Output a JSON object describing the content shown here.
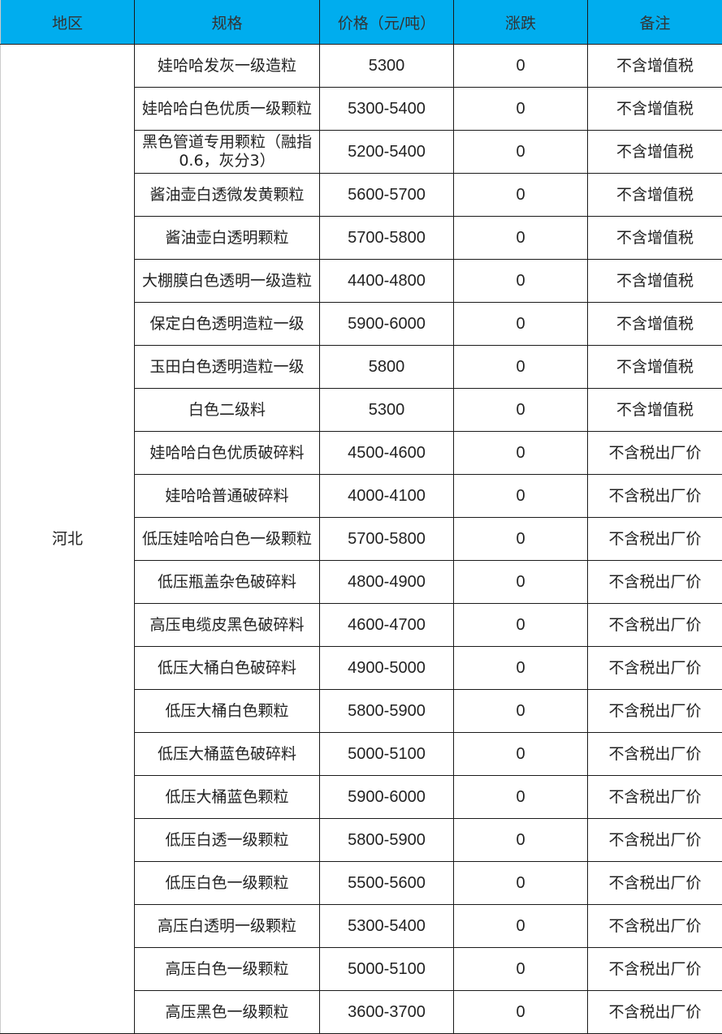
{
  "header": [
    "地区",
    "规格",
    "价格（元/吨）",
    "涨跌",
    "备注"
  ],
  "region": "河北",
  "rows": [
    {
      "spec": "娃哈哈发灰一级造粒",
      "price": "5300",
      "change": "0",
      "note": "不含增值税"
    },
    {
      "spec": "娃哈哈白色优质一级颗粒",
      "price": "5300-5400",
      "change": "0",
      "note": "不含增值税"
    },
    {
      "spec": "黑色管道专用颗粒（融指0.6，灰分3）",
      "price": "5200-5400",
      "change": "0",
      "note": "不含增值税"
    },
    {
      "spec": "酱油壶白透微发黄颗粒",
      "price": "5600-5700",
      "change": "0",
      "note": "不含增值税"
    },
    {
      "spec": "酱油壶白透明颗粒",
      "price": "5700-5800",
      "change": "0",
      "note": "不含增值税"
    },
    {
      "spec": "大棚膜白色透明一级造粒",
      "price": "4400-4800",
      "change": "0",
      "note": "不含增值税"
    },
    {
      "spec": "保定白色透明造粒一级",
      "price": "5900-6000",
      "change": "0",
      "note": "不含增值税"
    },
    {
      "spec": "玉田白色透明造粒一级",
      "price": "5800",
      "change": "0",
      "note": "不含增值税"
    },
    {
      "spec": "白色二级料",
      "price": "5300",
      "change": "0",
      "note": "不含增值税"
    },
    {
      "spec": "娃哈哈白色优质破碎料",
      "price": "4500-4600",
      "change": "0",
      "note": "不含税出厂价"
    },
    {
      "spec": "娃哈哈普通破碎料",
      "price": "4000-4100",
      "change": "0",
      "note": "不含税出厂价"
    },
    {
      "spec": "低压娃哈哈白色一级颗粒",
      "price": "5700-5800",
      "change": "0",
      "note": "不含税出厂价"
    },
    {
      "spec": "低压瓶盖杂色破碎料",
      "price": "4800-4900",
      "change": "0",
      "note": "不含税出厂价"
    },
    {
      "spec": "高压电缆皮黑色破碎料",
      "price": "4600-4700",
      "change": "0",
      "note": "不含税出厂价"
    },
    {
      "spec": "低压大桶白色破碎料",
      "price": "4900-5000",
      "change": "0",
      "note": "不含税出厂价"
    },
    {
      "spec": "低压大桶白色颗粒",
      "price": "5800-5900",
      "change": "0",
      "note": "不含税出厂价"
    },
    {
      "spec": "低压大桶蓝色破碎料",
      "price": "5000-5100",
      "change": "0",
      "note": "不含税出厂价"
    },
    {
      "spec": "低压大桶蓝色颗粒",
      "price": "5900-6000",
      "change": "0",
      "note": "不含税出厂价"
    },
    {
      "spec": "低压白透一级颗粒",
      "price": "5800-5900",
      "change": "0",
      "note": "不含税出厂价"
    },
    {
      "spec": "低压白色一级颗粒",
      "price": "5500-5600",
      "change": "0",
      "note": "不含税出厂价"
    },
    {
      "spec": "高压白透明一级颗粒",
      "price": "5300-5400",
      "change": "0",
      "note": "不含税出厂价"
    },
    {
      "spec": "高压白色一级颗粒",
      "price": "5000-5100",
      "change": "0",
      "note": "不含税出厂价"
    },
    {
      "spec": "高压黑色一级颗粒",
      "price": "3600-3700",
      "change": "0",
      "note": "不含税出厂价"
    }
  ]
}
